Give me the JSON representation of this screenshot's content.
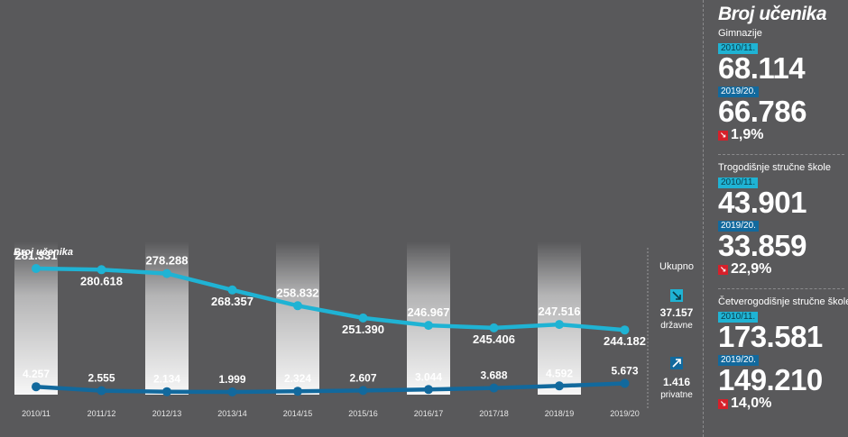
{
  "chart_data": {
    "type": "line",
    "title": "Broj učenika",
    "categories": [
      "2010/11",
      "2011/12",
      "2012/13",
      "2013/14",
      "2014/15",
      "2015/16",
      "2016/17",
      "2017/18",
      "2018/19",
      "2019/20"
    ],
    "series": [
      {
        "labels": [
          "281.331",
          "280.618",
          "278.288",
          "268.357",
          "258.832",
          "251.390",
          "246.967",
          "245.406",
          "247.516",
          "244.182"
        ],
        "values": [
          281331,
          280618,
          278288,
          268357,
          258832,
          251390,
          246967,
          245406,
          247516,
          244182
        ],
        "color": "#1fb3d4"
      },
      {
        "labels": [
          "4.257",
          "2.555",
          "2.134",
          "1.999",
          "2.324",
          "2.607",
          "3.044",
          "3.688",
          "4.592",
          "5.673"
        ],
        "values": [
          4257,
          2555,
          2134,
          1999,
          2324,
          2607,
          3044,
          3688,
          4592,
          5673
        ],
        "color": "#12699d"
      }
    ],
    "legend": {
      "title": "Ukupno",
      "state_value": "37.157",
      "state_label": "državne",
      "private_value": "1.416",
      "private_label": "privatne"
    },
    "grid": false
  },
  "colors": {
    "background": "#59595b",
    "cyan": "#1fb3d4",
    "blue": "#12699d",
    "decrease": "#d6202a"
  },
  "panel": {
    "title": "Broj učenika",
    "sections": [
      {
        "label": "Gimnazije",
        "year_a": "2010/11.",
        "value_a": "68.114",
        "year_b": "2019/20.",
        "value_b": "66.786",
        "change": "1,9%"
      },
      {
        "label": "Trogodišnje stručne škole",
        "year_a": "2010/11.",
        "value_a": "43.901",
        "year_b": "2019/20.",
        "value_b": "33.859",
        "change": "22,9%"
      },
      {
        "label": "Četverogodišnje stručne škole",
        "year_a": "2010/11.",
        "value_a": "173.581",
        "year_b": "2019/20.",
        "value_b": "149.210",
        "change": "14,0%"
      }
    ]
  },
  "icons": {
    "state": "arrow-down-right-icon",
    "private": "arrow-up-right-icon",
    "decrease": "arrow-down-right-icon"
  }
}
